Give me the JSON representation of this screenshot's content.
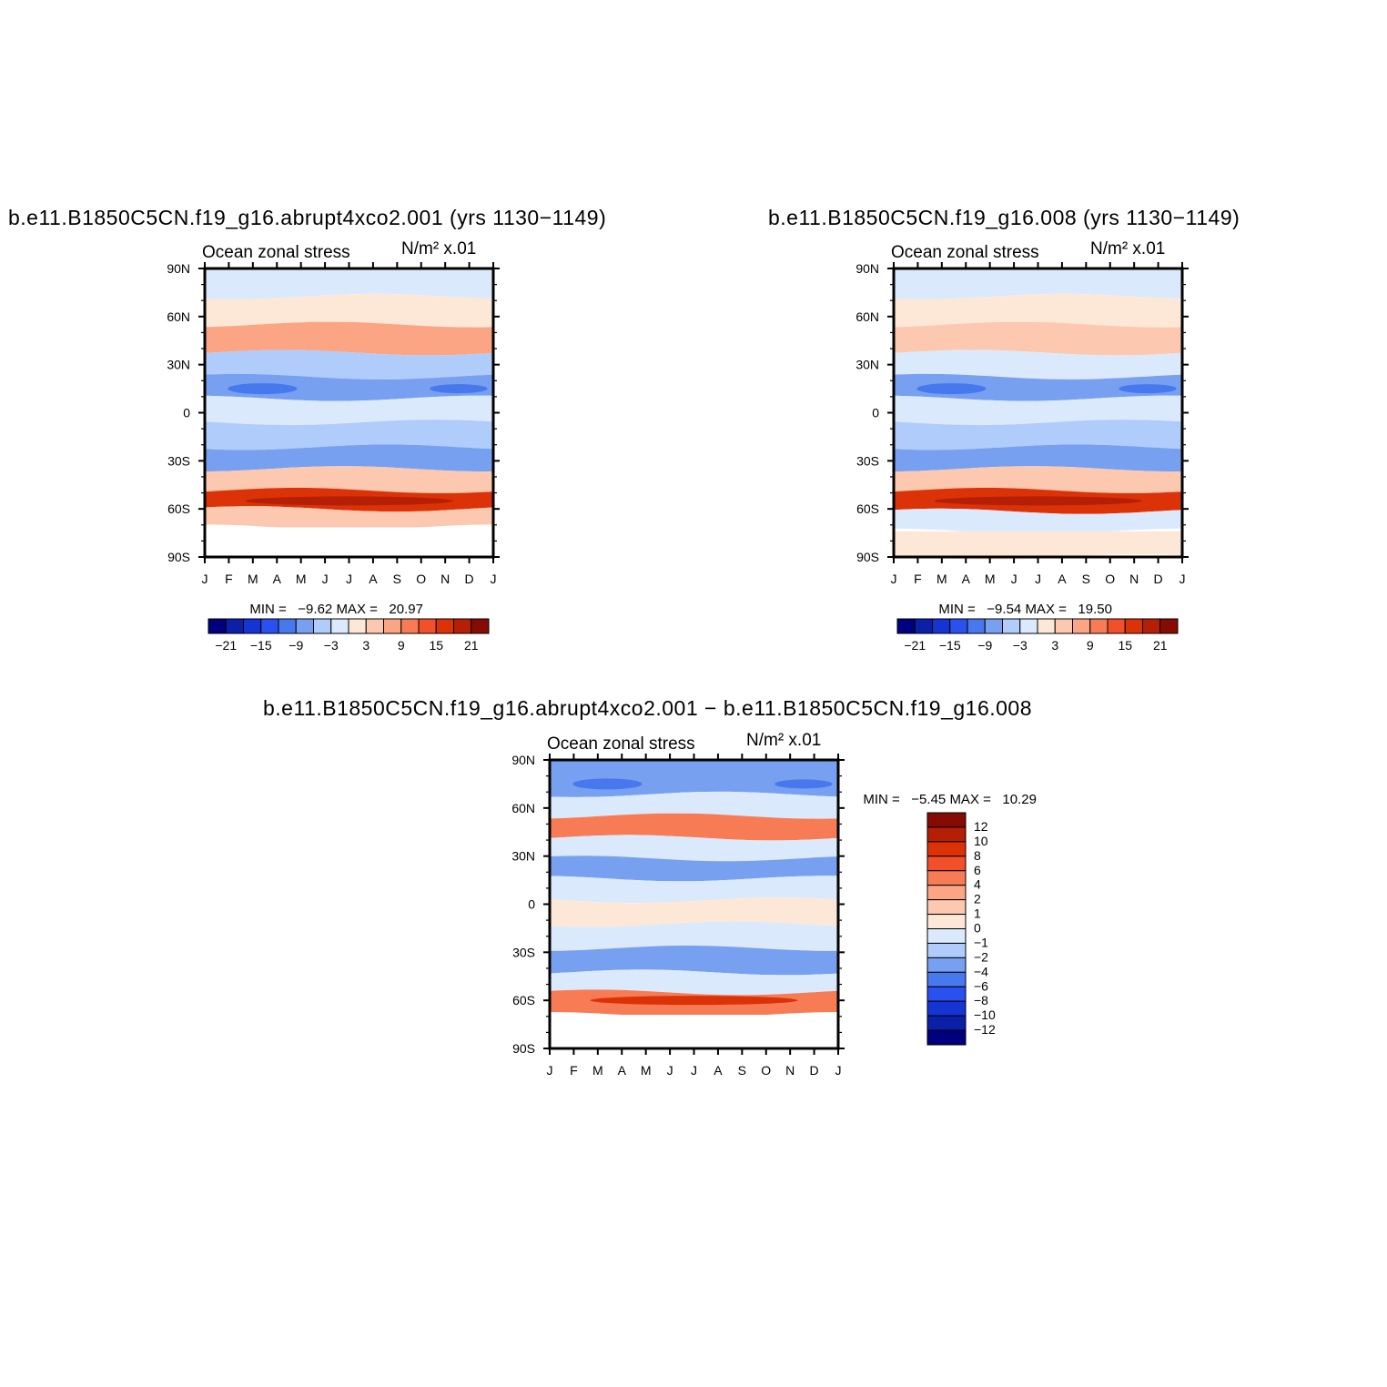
{
  "panels": [
    {
      "id": "p1",
      "title": "b.e11.B1850C5CN.f19_g16.abrupt4xco2.001 (yrs 1130−1149)",
      "variable": "Ocean zonal stress",
      "units": "N/m² x.01",
      "min_label": "MIN =",
      "min": "−9.62",
      "max_label": "MAX =",
      "max": "20.97"
    },
    {
      "id": "p2",
      "title": "b.e11.B1850C5CN.f19_g16.008 (yrs 1130−1149)",
      "variable": "Ocean zonal stress",
      "units": "N/m² x.01",
      "min_label": "MIN =",
      "min": "−9.54",
      "max_label": "MAX =",
      "max": "19.50"
    },
    {
      "id": "p3",
      "title": "b.e11.B1850C5CN.f19_g16.abrupt4xco2.001 − b.e11.B1850C5CN.f19_g16.008",
      "variable": "Ocean zonal stress",
      "units": "N/m² x.01",
      "min_label": "MIN =",
      "min": "−5.45",
      "max_label": "MAX =",
      "max": "10.29"
    }
  ],
  "chart_data": [
    {
      "type": "heatmap",
      "title": "b.e11.B1850C5CN.f19_g16.abrupt4xco2.001 (yrs 1130−1149)",
      "x_ticks": [
        "J",
        "F",
        "M",
        "A",
        "M",
        "J",
        "J",
        "A",
        "S",
        "O",
        "N",
        "D",
        "J"
      ],
      "y_ticks": [
        "90N",
        "60N",
        "30N",
        "0",
        "30S",
        "60S",
        "90S"
      ],
      "ylim": [
        -90,
        90
      ],
      "colorbar_levels": [
        "−21",
        "−15",
        "−9",
        "−3",
        "3",
        "9",
        "15",
        "21"
      ],
      "colors": [
        "#00007f",
        "#0b1fa8",
        "#1434d4",
        "#2a50f0",
        "#4878ee",
        "#78a0f0",
        "#b0ccfa",
        "#dbe9fc",
        "#fde8d8",
        "#fcc9b0",
        "#fba584",
        "#f77c55",
        "#f2502a",
        "#dc3208",
        "#b41f06",
        "#860b04"
      ],
      "bands": [
        {
          "lat": 80,
          "value": -2
        },
        {
          "lat": 65,
          "value": 0.5
        },
        {
          "lat": 45,
          "value": 8
        },
        {
          "lat": 30,
          "value": -3
        },
        {
          "lat": 15,
          "value": -8
        },
        {
          "lat": 3,
          "value": -1
        },
        {
          "lat": -15,
          "value": -4
        },
        {
          "lat": -28,
          "value": -6
        },
        {
          "lat": -42,
          "value": 6
        },
        {
          "lat": -55,
          "value": 17
        },
        {
          "lat": -65,
          "value": 4
        },
        {
          "lat": -78,
          "value": null
        }
      ]
    },
    {
      "type": "heatmap",
      "title": "b.e11.B1850C5CN.f19_g16.008 (yrs 1130−1149)",
      "x_ticks": [
        "J",
        "F",
        "M",
        "A",
        "M",
        "J",
        "J",
        "A",
        "S",
        "O",
        "N",
        "D",
        "J"
      ],
      "y_ticks": [
        "90N",
        "60N",
        "30N",
        "0",
        "30S",
        "60S",
        "90S"
      ],
      "ylim": [
        -90,
        90
      ],
      "colorbar_levels": [
        "−21",
        "−15",
        "−9",
        "−3",
        "3",
        "9",
        "15",
        "21"
      ],
      "colors": [
        "#00007f",
        "#0b1fa8",
        "#1434d4",
        "#2a50f0",
        "#4878ee",
        "#78a0f0",
        "#b0ccfa",
        "#dbe9fc",
        "#fde8d8",
        "#fcc9b0",
        "#fba584",
        "#f77c55",
        "#f2502a",
        "#dc3208",
        "#b41f06",
        "#860b04"
      ],
      "bands": [
        {
          "lat": 80,
          "value": -1
        },
        {
          "lat": 65,
          "value": 0.5
        },
        {
          "lat": 45,
          "value": 4
        },
        {
          "lat": 30,
          "value": -2
        },
        {
          "lat": 15,
          "value": -7
        },
        {
          "lat": 3,
          "value": -1
        },
        {
          "lat": -15,
          "value": -4
        },
        {
          "lat": -28,
          "value": -6
        },
        {
          "lat": -42,
          "value": 6
        },
        {
          "lat": -55,
          "value": 16
        },
        {
          "lat": -68,
          "value": -1
        },
        {
          "lat": -80,
          "value": 0.5
        }
      ]
    },
    {
      "type": "heatmap",
      "title": "b.e11.B1850C5CN.f19_g16.abrupt4xco2.001 − b.e11.B1850C5CN.f19_g16.008",
      "x_ticks": [
        "J",
        "F",
        "M",
        "A",
        "M",
        "J",
        "J",
        "A",
        "S",
        "O",
        "N",
        "D",
        "J"
      ],
      "y_ticks": [
        "90N",
        "60N",
        "30N",
        "0",
        "30S",
        "60S",
        "90S"
      ],
      "ylim": [
        -90,
        90
      ],
      "colorbar_levels": [
        "12",
        "10",
        "8",
        "6",
        "4",
        "2",
        "1",
        "0",
        "−1",
        "−2",
        "−4",
        "−6",
        "−8",
        "−10",
        "−12"
      ],
      "colors": [
        "#860b04",
        "#b41f06",
        "#dc3208",
        "#f2502a",
        "#f77c55",
        "#fba584",
        "#fcc9b0",
        "#fde8d8",
        "#dbe9fc",
        "#b0ccfa",
        "#78a0f0",
        "#4878ee",
        "#2a50f0",
        "#1434d4",
        "#0b1fa8",
        "#00007f"
      ],
      "bands": [
        {
          "lat": 75,
          "value": -3
        },
        {
          "lat": 62,
          "value": -0.5
        },
        {
          "lat": 48,
          "value": 4
        },
        {
          "lat": 35,
          "value": -0.5
        },
        {
          "lat": 22,
          "value": -3
        },
        {
          "lat": 10,
          "value": -1
        },
        {
          "lat": -5,
          "value": 0.5
        },
        {
          "lat": -20,
          "value": -1
        },
        {
          "lat": -35,
          "value": -3
        },
        {
          "lat": -50,
          "value": -1
        },
        {
          "lat": -60,
          "value": 5
        },
        {
          "lat": -78,
          "value": null
        }
      ]
    }
  ]
}
